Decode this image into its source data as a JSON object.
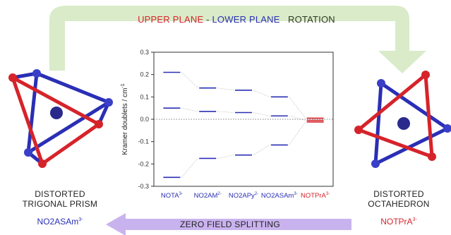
{
  "rotation": {
    "upper": "UPPER PLANE",
    "dash": " - ",
    "lower": "LOWER PLANE",
    "rotation": "ROTATION"
  },
  "left": {
    "label_line1": "DISTORTED",
    "label_line2": "TRIGONAL PRISM",
    "compound": "NO2ASAm",
    "charge": "3-"
  },
  "right": {
    "label_line1": "DISTORTED",
    "label_line2": "OCTAHEDRON",
    "compound": "NOTPrA",
    "charge": "3-"
  },
  "zfs_label": "ZERO FIELD SPLITTING",
  "colors": {
    "red": "#d6232a",
    "blue": "#2a2fb5",
    "arrow_green": "#d9ebc8",
    "arrow_purple": "#c9b3ee"
  },
  "chart_data": {
    "type": "level-diagram",
    "ylabel": "Kramer doublets / cm",
    "ylabel_superscript": "-1",
    "ylim": [
      -0.3,
      0.3
    ],
    "yticks": [
      "0.3",
      "0.2",
      "0.1",
      "0.0",
      "-0.1",
      "-0.2",
      "-0.3"
    ],
    "categories": [
      {
        "name": "NOTA",
        "charge": "3-",
        "color": "#2a2fb5"
      },
      {
        "name": "NO2AM",
        "charge": "2-",
        "color": "#2a2fb5"
      },
      {
        "name": "NO2APy",
        "charge": "2-",
        "color": "#2a2fb5"
      },
      {
        "name": "NO2ASAm",
        "charge": "3-",
        "color": "#2a2fb5"
      },
      {
        "name": "NOTPrA",
        "charge": "3-",
        "color": "#d6232a"
      }
    ],
    "levels": [
      [
        0.21,
        0.05,
        -0.26
      ],
      [
        0.14,
        0.035,
        -0.175
      ],
      [
        0.13,
        0.03,
        -0.16
      ],
      [
        0.1,
        0.015,
        -0.115
      ],
      [
        0.005,
        -0.005,
        -0.012
      ]
    ]
  }
}
